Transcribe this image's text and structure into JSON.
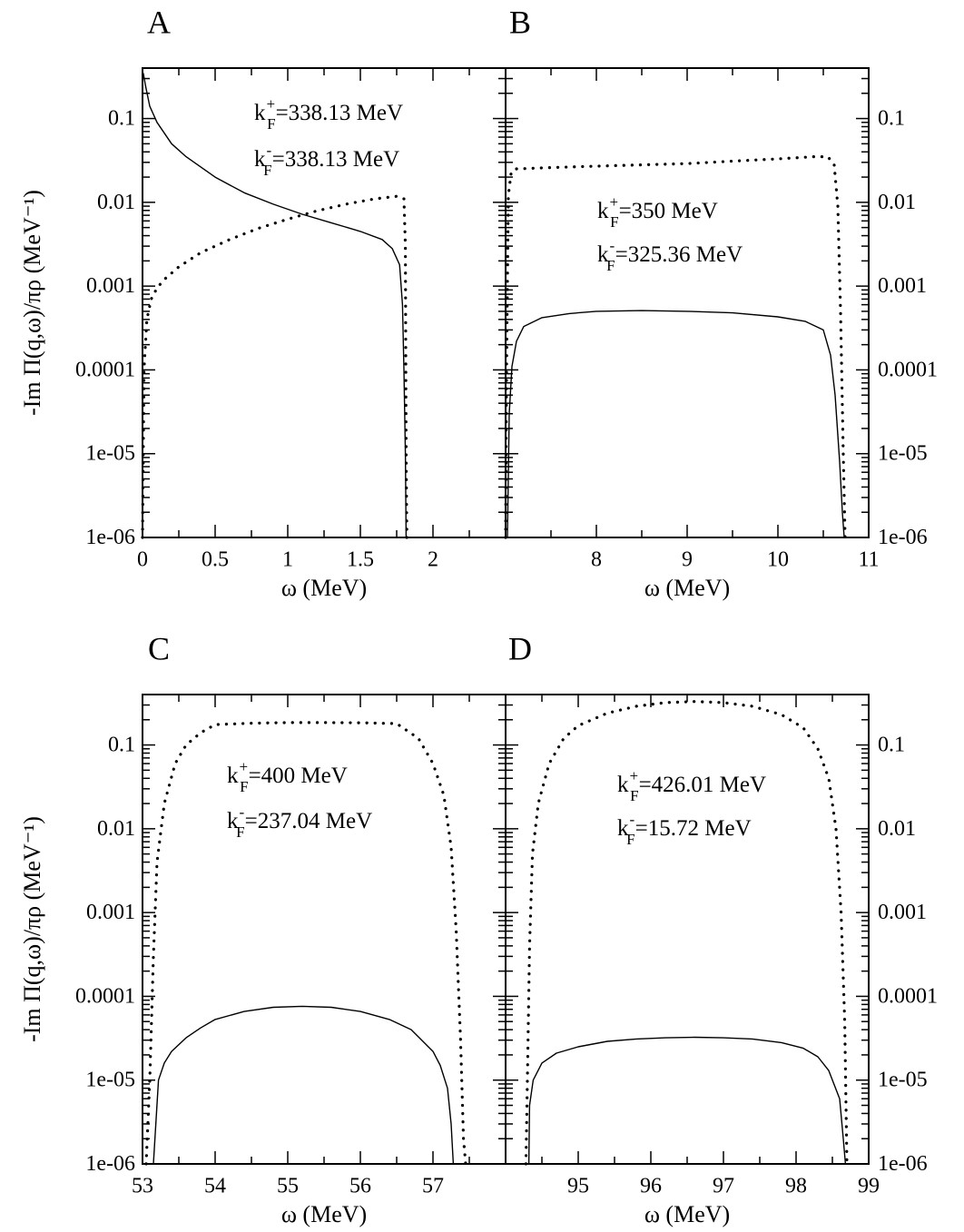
{
  "figure": {
    "y_axis_label": "-Im Π(q,ω)/πρ (MeV⁻¹)",
    "x_axis_label": "ω (MeV)"
  },
  "chart_data": [
    {
      "panel": "A",
      "type": "line",
      "xlabel": "ω (MeV)",
      "ylabel": "-Im Π(q,ω)/πρ (MeV⁻¹)",
      "xlim": [
        0,
        2.5
      ],
      "ylim": [
        1e-06,
        0.4
      ],
      "yscale": "log",
      "xticks": [
        0,
        0.5,
        1,
        1.5,
        2
      ],
      "xtick_labels": [
        "0",
        "0.5",
        "1",
        "1.5",
        "2"
      ],
      "yticks": [
        1e-06,
        1e-05,
        0.0001,
        0.001,
        0.01,
        0.1
      ],
      "ytick_labels": [
        "1e-06",
        "1e-05",
        "0.0001",
        "0.001",
        "0.01",
        "0.1"
      ],
      "ytick_side": "left",
      "annotations": [
        {
          "k": "k",
          "sup": "+",
          "sub": "F",
          "value": "=338.13 MeV"
        },
        {
          "k": "k",
          "sup": "-",
          "sub": "F",
          "value": "=338.13 MeV"
        }
      ],
      "series": [
        {
          "style": "solid",
          "x": [
            0.005,
            0.02,
            0.05,
            0.1,
            0.2,
            0.3,
            0.5,
            0.7,
            0.9,
            1.1,
            1.3,
            1.5,
            1.65,
            1.72,
            1.77,
            1.79,
            1.8,
            1.81,
            1.815
          ],
          "y": [
            0.35,
            0.25,
            0.14,
            0.09,
            0.05,
            0.035,
            0.02,
            0.013,
            0.0095,
            0.0072,
            0.0057,
            0.0045,
            0.0036,
            0.0028,
            0.0018,
            0.0006,
            0.0001,
            1e-05,
            1e-06
          ]
        },
        {
          "style": "dotted",
          "x": [
            0.0,
            0.01,
            0.03,
            0.06,
            0.1,
            0.15,
            0.25,
            0.4,
            0.6,
            0.8,
            1.0,
            1.2,
            1.4,
            1.6,
            1.75,
            1.8,
            1.81,
            1.815,
            1.82
          ],
          "y": [
            1e-06,
            0.0001,
            0.0004,
            0.0007,
            0.00095,
            0.0012,
            0.0017,
            0.0025,
            0.0036,
            0.0049,
            0.0063,
            0.0079,
            0.0095,
            0.011,
            0.0118,
            0.011,
            0.003,
            1e-05,
            1e-06
          ]
        }
      ]
    },
    {
      "panel": "B",
      "type": "line",
      "xlabel": "ω (MeV)",
      "ylabel": "",
      "xlim": [
        7,
        11
      ],
      "ylim": [
        1e-06,
        0.4
      ],
      "yscale": "log",
      "xticks": [
        8,
        9,
        10,
        11
      ],
      "xtick_labels": [
        "8",
        "9",
        "10",
        "11"
      ],
      "yticks": [
        1e-06,
        1e-05,
        0.0001,
        0.001,
        0.01,
        0.1
      ],
      "ytick_labels": [
        "1e-06",
        "1e-05",
        "0.0001",
        "0.001",
        "0.01",
        "0.1"
      ],
      "ytick_side": "right",
      "annotations": [
        {
          "k": "k",
          "sup": "+",
          "sub": "F",
          "value": "=350 MeV"
        },
        {
          "k": "k",
          "sup": "-",
          "sub": "F",
          "value": "=325.36 MeV"
        }
      ],
      "series": [
        {
          "style": "solid",
          "x": [
            7.02,
            7.04,
            7.07,
            7.12,
            7.2,
            7.4,
            7.7,
            8.0,
            8.5,
            9.0,
            9.5,
            10.0,
            10.3,
            10.5,
            10.58,
            10.63,
            10.68,
            10.71,
            10.73
          ],
          "y": [
            1e-06,
            3e-05,
            0.00011,
            0.00022,
            0.00033,
            0.00042,
            0.00047,
            0.0005,
            0.00051,
            0.0005,
            0.00048,
            0.00043,
            0.00038,
            0.0003,
            0.00015,
            5e-05,
            8e-06,
            2e-06,
            1e-06
          ]
        },
        {
          "style": "dotted",
          "x": [
            7.0,
            7.01,
            7.03,
            7.06,
            7.1,
            7.5,
            8.0,
            8.5,
            9.0,
            9.5,
            10.0,
            10.4,
            10.55,
            10.62,
            10.66,
            10.69,
            10.72,
            10.74
          ],
          "y": [
            1e-06,
            0.0001,
            0.012,
            0.022,
            0.025,
            0.026,
            0.027,
            0.028,
            0.029,
            0.031,
            0.033,
            0.035,
            0.035,
            0.028,
            0.009,
            0.0005,
            1e-05,
            1e-06
          ]
        }
      ]
    },
    {
      "panel": "C",
      "type": "line",
      "xlabel": "ω (MeV)",
      "ylabel": "-Im Π(q,ω)/πρ (MeV⁻¹)",
      "xlim": [
        53,
        58
      ],
      "ylim": [
        1e-06,
        0.4
      ],
      "yscale": "log",
      "xticks": [
        53,
        54,
        55,
        56,
        57
      ],
      "xtick_labels": [
        "53",
        "54",
        "55",
        "56",
        "57"
      ],
      "yticks": [
        1e-06,
        1e-05,
        0.0001,
        0.001,
        0.01,
        0.1
      ],
      "ytick_labels": [
        "1e-06",
        "1e-05",
        "0.0001",
        "0.001",
        "0.01",
        "0.1"
      ],
      "ytick_side": "left",
      "annotations": [
        {
          "k": "k",
          "sup": "+",
          "sub": "F",
          "value": "=400 MeV"
        },
        {
          "k": "k",
          "sup": "-",
          "sub": "F",
          "value": "=237.04 MeV"
        }
      ],
      "series": [
        {
          "style": "solid",
          "x": [
            53.15,
            53.22,
            53.3,
            53.4,
            53.6,
            53.8,
            54.0,
            54.4,
            54.8,
            55.2,
            55.6,
            56.0,
            56.4,
            56.7,
            57.0,
            57.1,
            57.2,
            57.25,
            57.28
          ],
          "y": [
            1e-06,
            1e-05,
            1.6e-05,
            2.2e-05,
            3.2e-05,
            4.2e-05,
            5.3e-05,
            6.6e-05,
            7.4e-05,
            7.6e-05,
            7.4e-05,
            6.6e-05,
            5.3e-05,
            4e-05,
            2.2e-05,
            1.5e-05,
            8e-06,
            3e-06,
            1e-06
          ]
        },
        {
          "style": "dotted",
          "x": [
            53.05,
            53.1,
            53.15,
            53.2,
            53.3,
            53.45,
            53.6,
            53.8,
            54.0,
            54.5,
            55.0,
            55.5,
            56.0,
            56.5,
            56.8,
            57.0,
            57.15,
            57.25,
            57.32,
            57.38,
            57.42,
            57.45
          ],
          "y": [
            1e-06,
            1e-05,
            0.0003,
            0.004,
            0.02,
            0.06,
            0.1,
            0.14,
            0.175,
            0.182,
            0.185,
            0.185,
            0.184,
            0.18,
            0.12,
            0.06,
            0.025,
            0.006,
            0.0006,
            3e-05,
            2e-06,
            1e-06
          ]
        }
      ]
    },
    {
      "panel": "D",
      "type": "line",
      "xlabel": "ω (MeV)",
      "ylabel": "",
      "xlim": [
        94,
        99
      ],
      "ylim": [
        1e-06,
        0.4
      ],
      "yscale": "log",
      "xticks": [
        95,
        96,
        97,
        98,
        99
      ],
      "xtick_labels": [
        "95",
        "96",
        "97",
        "98",
        "99"
      ],
      "yticks": [
        1e-06,
        1e-05,
        0.0001,
        0.001,
        0.01,
        0.1
      ],
      "ytick_labels": [
        "1e-06",
        "1e-05",
        "0.0001",
        "0.001",
        "0.01",
        "0.1"
      ],
      "ytick_side": "right",
      "annotations": [
        {
          "k": "k",
          "sup": "+",
          "sub": "F",
          "value": "=426.01 MeV"
        },
        {
          "k": "k",
          "sup": "-",
          "sub": "F",
          "value": "=15.72 MeV"
        }
      ],
      "series": [
        {
          "style": "solid",
          "x": [
            94.32,
            94.33,
            94.38,
            94.5,
            94.7,
            95.0,
            95.4,
            95.8,
            96.2,
            96.6,
            97.0,
            97.4,
            97.8,
            98.1,
            98.3,
            98.45,
            98.6,
            98.65,
            98.68
          ],
          "y": [
            1e-06,
            5e-06,
            1e-05,
            1.6e-05,
            2.1e-05,
            2.5e-05,
            2.9e-05,
            3.1e-05,
            3.2e-05,
            3.25e-05,
            3.2e-05,
            3.1e-05,
            2.8e-05,
            2.4e-05,
            1.9e-05,
            1.3e-05,
            6e-06,
            2e-06,
            1e-06
          ]
        },
        {
          "style": "dotted",
          "x": [
            94.28,
            94.3,
            94.33,
            94.37,
            94.45,
            94.6,
            94.8,
            95.0,
            95.4,
            95.8,
            96.2,
            96.6,
            97.0,
            97.4,
            97.8,
            98.1,
            98.3,
            98.45,
            98.55,
            98.62,
            98.67,
            98.7
          ],
          "y": [
            1e-06,
            1e-05,
            0.0004,
            0.005,
            0.02,
            0.06,
            0.12,
            0.17,
            0.24,
            0.29,
            0.32,
            0.33,
            0.32,
            0.29,
            0.23,
            0.16,
            0.09,
            0.04,
            0.01,
            0.001,
            5e-05,
            1e-06
          ]
        }
      ]
    }
  ]
}
